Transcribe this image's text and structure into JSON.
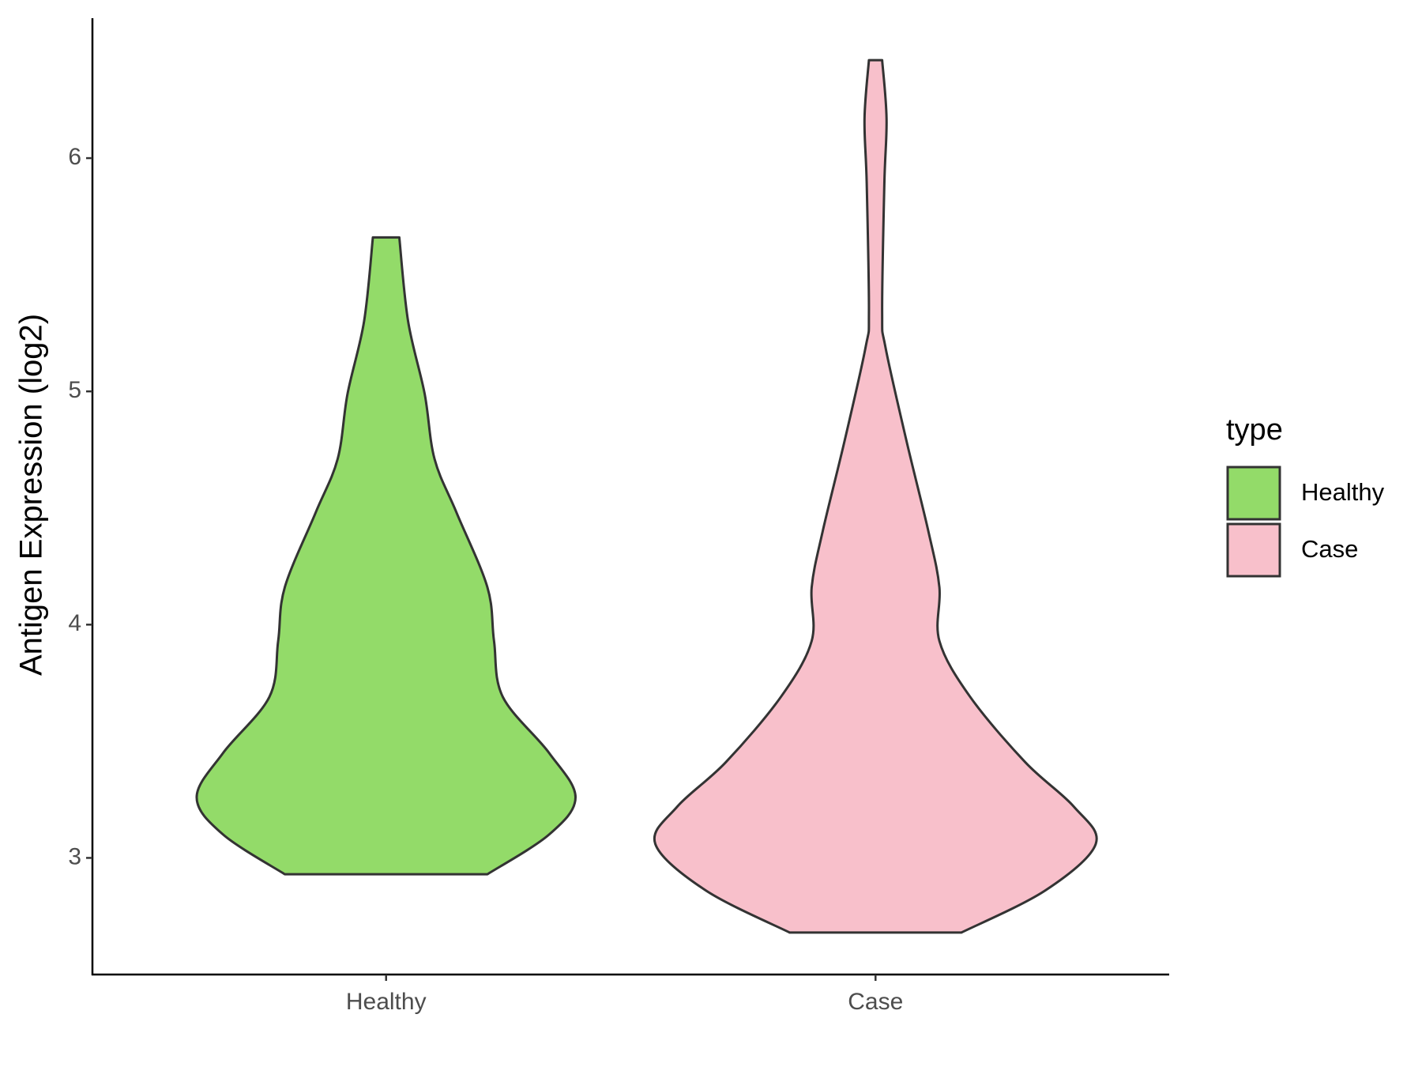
{
  "chart_data": {
    "type": "violin",
    "ylabel": "Antigen Expression (log2)",
    "categories": [
      "Healthy",
      "Case"
    ],
    "legend_title": "type",
    "legend": "right",
    "ylim": [
      2.5,
      6.6
    ],
    "yticks": [
      3,
      4,
      5,
      6
    ],
    "series": [
      {
        "name": "Healthy",
        "color": "#93db69",
        "y": [
          5.66,
          5.3,
          4.99,
          4.71,
          4.48,
          4.16,
          3.93,
          3.69,
          3.45,
          3.26,
          3.1,
          2.93
        ],
        "density": [
          0.06,
          0.1,
          0.175,
          0.22,
          0.32,
          0.46,
          0.49,
          0.53,
          0.74,
          0.86,
          0.74,
          0.46
        ]
      },
      {
        "name": "Case",
        "color": "#f8c0cb",
        "y": [
          6.42,
          6.17,
          5.89,
          5.34,
          5.19,
          4.79,
          4.4,
          4.16,
          3.93,
          3.69,
          3.41,
          3.22,
          3.06,
          2.86,
          2.68
        ],
        "density": [
          0.03,
          0.05,
          0.04,
          0.03,
          0.045,
          0.14,
          0.24,
          0.29,
          0.29,
          0.43,
          0.68,
          0.9,
          1.0,
          0.77,
          0.39
        ]
      }
    ]
  }
}
